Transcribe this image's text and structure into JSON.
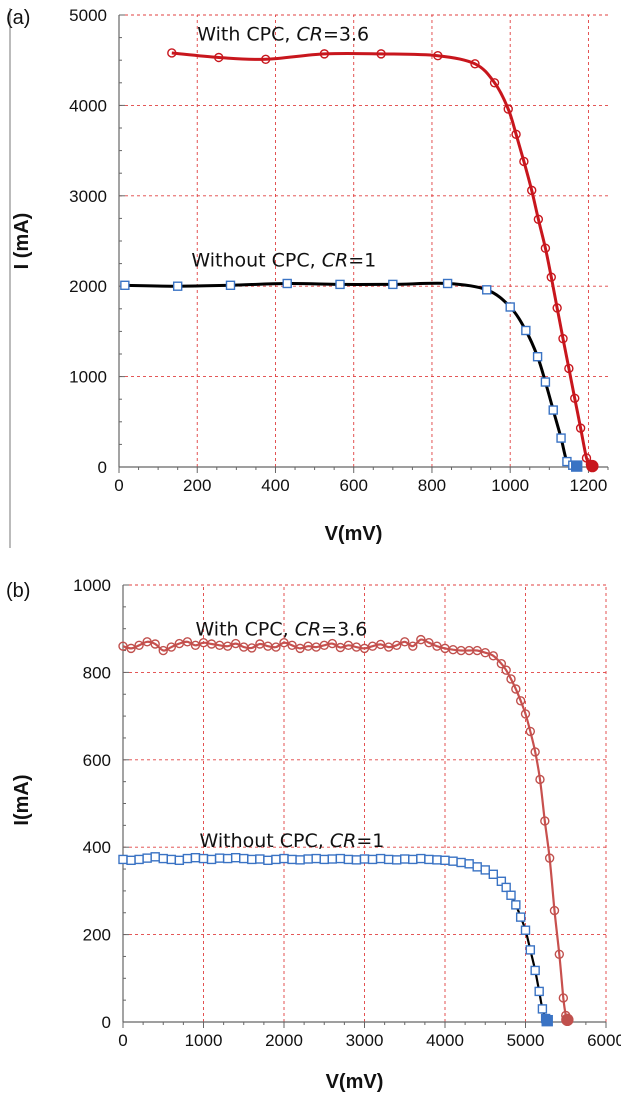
{
  "chart_data": [
    {
      "panel_label": "(a)",
      "type": "line",
      "xlabel": "V(mV)",
      "ylabel": "I (mA)",
      "xlim": [
        0,
        1250
      ],
      "ylim": [
        0,
        5000
      ],
      "xticks": [
        0,
        200,
        400,
        600,
        800,
        1000,
        1200
      ],
      "yticks": [
        0,
        1000,
        2000,
        3000,
        4000,
        5000
      ],
      "grid": true,
      "annotations": [
        {
          "text": "With CPC, ",
          "italic": "CR",
          "suffix": "=3.6",
          "x": 200,
          "y": 4720
        },
        {
          "text": "Without CPC, ",
          "italic": "CR",
          "suffix": "=1",
          "x": 185,
          "y": 2220
        }
      ],
      "series": [
        {
          "color": "#c8161d",
          "marker_color": "#c8161d",
          "marker": "circle",
          "x": [
            135,
            255,
            375,
            525,
            670,
            815,
            910,
            960,
            995,
            1015,
            1035,
            1055,
            1072,
            1090,
            1105,
            1120,
            1135,
            1150,
            1165,
            1180,
            1195,
            1205,
            1210
          ],
          "y": [
            4580,
            4530,
            4510,
            4570,
            4570,
            4550,
            4460,
            4250,
            3960,
            3680,
            3380,
            3060,
            2740,
            2420,
            2100,
            1760,
            1420,
            1090,
            760,
            430,
            100,
            30,
            10
          ]
        },
        {
          "color": "#000000",
          "marker_color": "#3a73c4",
          "marker": "square",
          "x": [
            15,
            150,
            285,
            430,
            565,
            700,
            840,
            940,
            1000,
            1040,
            1070,
            1090,
            1110,
            1130,
            1145,
            1160,
            1170
          ],
          "y": [
            2010,
            2000,
            2010,
            2030,
            2020,
            2020,
            2030,
            1960,
            1770,
            1510,
            1220,
            940,
            630,
            320,
            60,
            20,
            10
          ]
        }
      ]
    },
    {
      "panel_label": "(b)",
      "type": "line",
      "xlabel": "V(mV)",
      "ylabel": "I(mA)",
      "xlim": [
        0,
        6000
      ],
      "ylim": [
        0,
        1000
      ],
      "xticks": [
        0,
        1000,
        2000,
        3000,
        4000,
        5000,
        6000
      ],
      "yticks": [
        0,
        200,
        400,
        600,
        800,
        1000
      ],
      "grid": true,
      "annotations": [
        {
          "text": "With CPC, ",
          "italic": "CR",
          "suffix": "=3.6",
          "x": 900,
          "y": 885
        },
        {
          "text": "Without CPC, ",
          "italic": "CR",
          "suffix": "=1",
          "x": 950,
          "y": 400
        }
      ],
      "series": [
        {
          "color": "#c8504e",
          "marker_color": "#c0504d",
          "marker": "circle",
          "x": [
            0,
            100,
            200,
            300,
            400,
            500,
            600,
            700,
            800,
            900,
            1000,
            1100,
            1200,
            1300,
            1400,
            1500,
            1600,
            1700,
            1800,
            1900,
            2000,
            2100,
            2200,
            2300,
            2400,
            2500,
            2600,
            2700,
            2800,
            2900,
            3000,
            3100,
            3200,
            3300,
            3400,
            3500,
            3600,
            3700,
            3800,
            3900,
            4000,
            4100,
            4200,
            4300,
            4400,
            4500,
            4600,
            4700,
            4760,
            4820,
            4880,
            4940,
            5000,
            5060,
            5120,
            5180,
            5240,
            5300,
            5360,
            5420,
            5470,
            5500,
            5520
          ],
          "y": [
            860,
            855,
            862,
            870,
            865,
            850,
            858,
            866,
            870,
            862,
            868,
            865,
            862,
            860,
            866,
            858,
            856,
            865,
            860,
            858,
            868,
            862,
            855,
            860,
            858,
            862,
            866,
            857,
            862,
            858,
            855,
            860,
            864,
            858,
            862,
            870,
            860,
            875,
            868,
            860,
            855,
            852,
            850,
            850,
            850,
            845,
            838,
            820,
            805,
            785,
            762,
            735,
            705,
            665,
            618,
            555,
            460,
            375,
            255,
            155,
            55,
            15,
            5
          ]
        },
        {
          "color": "#000000",
          "marker_color": "#3a73c4",
          "marker": "square",
          "x": [
            0,
            100,
            200,
            300,
            400,
            500,
            600,
            700,
            800,
            900,
            1000,
            1100,
            1200,
            1300,
            1400,
            1500,
            1600,
            1700,
            1800,
            1900,
            2000,
            2100,
            2200,
            2300,
            2400,
            2500,
            2600,
            2700,
            2800,
            2900,
            3000,
            3100,
            3200,
            3300,
            3400,
            3500,
            3600,
            3700,
            3800,
            3900,
            4000,
            4100,
            4200,
            4300,
            4400,
            4500,
            4600,
            4700,
            4760,
            4820,
            4880,
            4940,
            5000,
            5060,
            5120,
            5170,
            5210,
            5250,
            5270
          ],
          "y": [
            372,
            370,
            372,
            375,
            378,
            374,
            372,
            370,
            374,
            376,
            374,
            372,
            375,
            374,
            376,
            374,
            372,
            373,
            370,
            372,
            374,
            372,
            371,
            373,
            374,
            372,
            373,
            374,
            372,
            371,
            373,
            372,
            374,
            372,
            371,
            373,
            372,
            374,
            372,
            371,
            370,
            368,
            365,
            362,
            355,
            348,
            338,
            322,
            308,
            290,
            268,
            240,
            210,
            165,
            118,
            70,
            30,
            8,
            3
          ]
        }
      ]
    }
  ]
}
